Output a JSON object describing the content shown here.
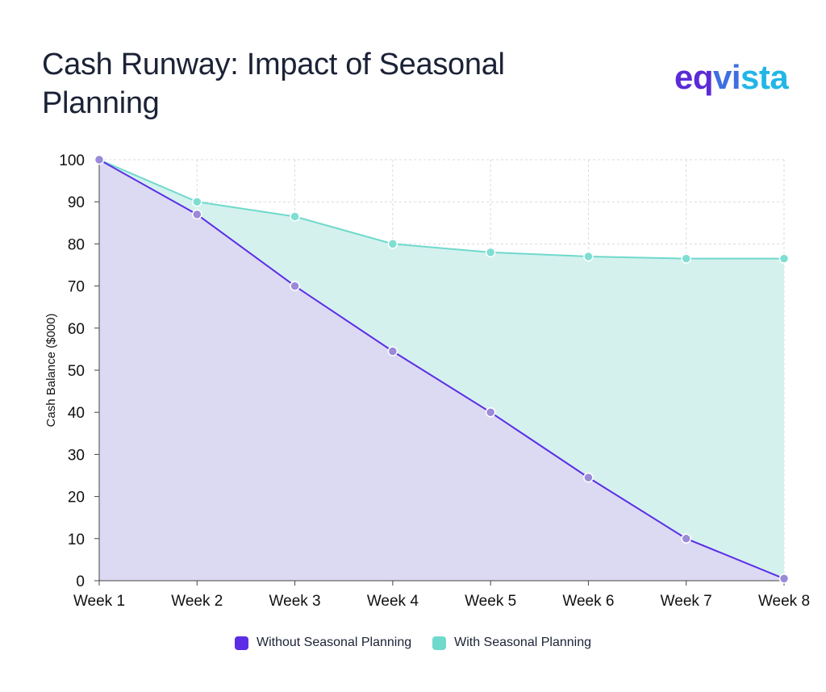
{
  "header": {
    "title": "Cash Runway: Impact of Seasonal Planning",
    "logo_text": "eqvista"
  },
  "colors": {
    "without": "#5b2ee6",
    "without_fill": "#dcd9f2",
    "with": "#6fd9cc",
    "with_fill": "#d4f1ee",
    "marker_without": "#9a8ad8",
    "marker_with": "#7fded2",
    "grid": "#d9d9e3"
  },
  "chart_data": {
    "type": "area",
    "categories": [
      "Week 1",
      "Week 2",
      "Week 3",
      "Week 4",
      "Week 5",
      "Week 6",
      "Week 7",
      "Week 8"
    ],
    "series": [
      {
        "name": "Without Seasonal Planning",
        "values": [
          100,
          87,
          70,
          54.5,
          40,
          24.5,
          10,
          0.5
        ]
      },
      {
        "name": "With Seasonal Planning",
        "values": [
          100,
          90,
          86.5,
          80,
          78,
          77,
          76.5,
          76.5
        ]
      }
    ],
    "title": "Cash Runway: Impact of Seasonal Planning",
    "xlabel": "",
    "ylabel": "Cash Balance ($000)",
    "ylim": [
      0,
      100
    ],
    "yticks": [
      0,
      10,
      20,
      30,
      40,
      50,
      60,
      70,
      80,
      90,
      100
    ],
    "grid": true,
    "legend_position": "bottom"
  }
}
